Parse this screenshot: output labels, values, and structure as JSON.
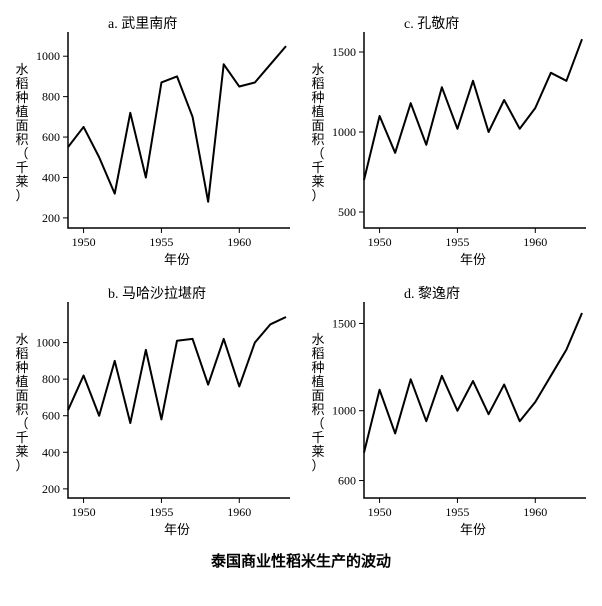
{
  "caption": "泰国商业性稻米生产的波动",
  "x_axis_label": "年份",
  "y_axis_label": "水稻种植面积（千莱）",
  "colors": {
    "line": "#000000",
    "axis": "#000000",
    "bg": "#ffffff"
  },
  "line_width": 2,
  "axis_width": 1.5,
  "tick_len": 5,
  "title_fontsize": 14,
  "label_fontsize": 13,
  "tick_fontsize": 12,
  "panels": [
    {
      "id": "a",
      "title": "a. 武里南府",
      "xlim": [
        1949,
        1963
      ],
      "xticks": [
        1950,
        1955,
        1960
      ],
      "ylim": [
        150,
        1100
      ],
      "yticks": [
        200,
        400,
        600,
        800,
        1000
      ],
      "years": [
        1949,
        1950,
        1951,
        1952,
        1953,
        1954,
        1955,
        1956,
        1957,
        1958,
        1959,
        1960,
        1961,
        1962,
        1963
      ],
      "values": [
        550,
        650,
        500,
        320,
        720,
        400,
        870,
        900,
        700,
        280,
        960,
        850,
        870,
        960,
        1050
      ]
    },
    {
      "id": "c",
      "title": "c. 孔敬府",
      "xlim": [
        1949,
        1963
      ],
      "xticks": [
        1950,
        1955,
        1960
      ],
      "ylim": [
        400,
        1600
      ],
      "yticks": [
        500,
        1000,
        1500
      ],
      "years": [
        1949,
        1950,
        1951,
        1952,
        1953,
        1954,
        1955,
        1956,
        1957,
        1958,
        1959,
        1960,
        1961,
        1962,
        1963
      ],
      "values": [
        700,
        1100,
        870,
        1180,
        920,
        1280,
        1020,
        1320,
        1000,
        1200,
        1020,
        1150,
        1370,
        1320,
        1580
      ]
    },
    {
      "id": "b",
      "title": "b. 马哈沙拉堪府",
      "xlim": [
        1949,
        1963
      ],
      "xticks": [
        1950,
        1955,
        1960
      ],
      "ylim": [
        150,
        1200
      ],
      "yticks": [
        200,
        400,
        600,
        800,
        1000
      ],
      "years": [
        1949,
        1950,
        1951,
        1952,
        1953,
        1954,
        1955,
        1956,
        1957,
        1958,
        1959,
        1960,
        1961,
        1962,
        1963
      ],
      "values": [
        630,
        820,
        600,
        900,
        560,
        960,
        580,
        1010,
        1020,
        770,
        1020,
        760,
        1000,
        1100,
        1140
      ]
    },
    {
      "id": "d",
      "title": "d. 黎逸府",
      "xlim": [
        1949,
        1963
      ],
      "xticks": [
        1950,
        1955,
        1960
      ],
      "ylim": [
        500,
        1600
      ],
      "yticks": [
        600,
        1000,
        1500
      ],
      "years": [
        1949,
        1950,
        1951,
        1952,
        1953,
        1954,
        1955,
        1956,
        1957,
        1958,
        1959,
        1960,
        1961,
        1962,
        1963
      ],
      "values": [
        760,
        1120,
        870,
        1180,
        940,
        1200,
        1000,
        1170,
        980,
        1150,
        940,
        1050,
        1200,
        1350,
        1560
      ]
    }
  ],
  "panel_order": [
    "a",
    "c",
    "b",
    "d"
  ]
}
